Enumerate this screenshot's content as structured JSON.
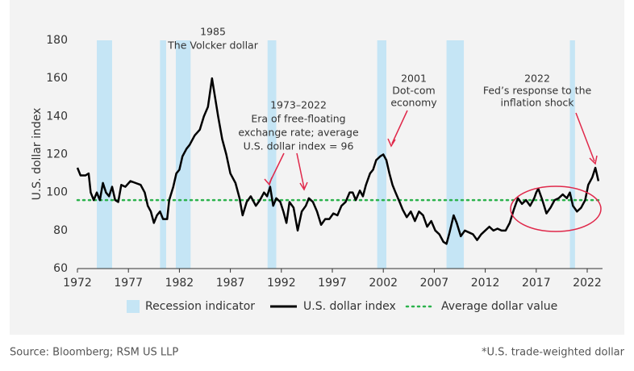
{
  "chart_data": {
    "type": "line",
    "y_label": "U.S. dollar index",
    "x": [
      1972.0,
      1972.3,
      1972.8,
      1973.1,
      1973.3,
      1973.6,
      1973.9,
      1974.2,
      1974.5,
      1974.8,
      1975.1,
      1975.4,
      1975.7,
      1976.0,
      1976.3,
      1976.7,
      1977.2,
      1977.7,
      1978.2,
      1978.6,
      1978.9,
      1979.2,
      1979.5,
      1979.8,
      1980.1,
      1980.4,
      1980.8,
      1981.0,
      1981.4,
      1981.7,
      1982.0,
      1982.3,
      1982.7,
      1983.0,
      1983.5,
      1984.0,
      1984.4,
      1984.8,
      1985.2,
      1985.5,
      1985.8,
      1986.2,
      1986.6,
      1987.0,
      1987.5,
      1987.9,
      1988.2,
      1988.6,
      1989.0,
      1989.5,
      1989.9,
      1990.3,
      1990.6,
      1990.9,
      1991.2,
      1991.5,
      1991.9,
      1992.2,
      1992.5,
      1992.8,
      1993.2,
      1993.6,
      1994.0,
      1994.4,
      1994.7,
      1995.1,
      1995.5,
      1995.9,
      1996.3,
      1996.7,
      1997.1,
      1997.5,
      1997.9,
      1998.3,
      1998.7,
      1999.0,
      1999.3,
      1999.7,
      2000.0,
      2000.3,
      2000.7,
      2001.0,
      2001.3,
      2001.7,
      2002.0,
      2002.3,
      2002.6,
      2002.9,
      2003.2,
      2003.6,
      2003.9,
      2004.3,
      2004.7,
      2005.1,
      2005.5,
      2005.9,
      2006.3,
      2006.7,
      2007.1,
      2007.5,
      2007.9,
      2008.2,
      2008.5,
      2008.9,
      2009.2,
      2009.6,
      2010.0,
      2010.4,
      2010.8,
      2011.2,
      2011.6,
      2012.0,
      2012.4,
      2012.8,
      2013.2,
      2013.6,
      2014.0,
      2014.4,
      2014.8,
      2015.2,
      2015.6,
      2016.0,
      2016.4,
      2016.8,
      2017.0,
      2017.2,
      2017.6,
      2018.0,
      2018.4,
      2018.8,
      2019.2,
      2019.6,
      2020.0,
      2020.3,
      2020.6,
      2021.0,
      2021.4,
      2021.8,
      2022.1,
      2022.5,
      2022.8,
      2023.1
    ],
    "series": [
      {
        "name": "U.S. dollar index",
        "color": "#000000",
        "values": [
          113,
          109,
          109,
          110,
          100,
          96,
          100,
          96,
          105,
          100,
          98,
          103,
          96,
          95,
          104,
          103,
          106,
          105,
          104,
          100,
          93,
          90,
          84,
          88,
          90,
          86,
          86,
          96,
          103,
          110,
          112,
          119,
          123,
          125,
          130,
          133,
          140,
          145,
          160,
          150,
          140,
          128,
          120,
          110,
          105,
          97,
          88,
          95,
          98,
          93,
          96,
          100,
          98,
          103,
          93,
          97,
          95,
          90,
          84,
          95,
          92,
          80,
          90,
          93,
          97,
          95,
          90,
          83,
          86,
          86,
          89,
          88,
          93,
          95,
          100,
          100,
          96,
          101,
          98,
          104,
          110,
          112,
          117,
          119,
          120,
          117,
          110,
          104,
          100,
          95,
          91,
          87,
          90,
          85,
          90,
          88,
          82,
          85,
          80,
          78,
          74,
          73,
          79,
          88,
          84,
          77,
          80,
          79,
          78,
          75,
          78,
          80,
          82,
          80,
          81,
          80,
          80,
          84,
          91,
          97,
          94,
          96,
          93,
          97,
          100,
          102,
          96,
          89,
          92,
          96,
          97,
          99,
          97,
          100,
          93,
          90,
          92,
          96,
          104,
          108,
          113,
          106
        ]
      }
    ],
    "recession": {
      "name": "Recession indicator",
      "color": "#c5e5f5",
      "periods": [
        [
          1973.9,
          1975.4
        ],
        [
          1980.1,
          1980.7
        ],
        [
          1981.65,
          1983.1
        ],
        [
          1990.65,
          1991.5
        ],
        [
          2001.4,
          2002.3
        ],
        [
          2008.2,
          2009.9
        ],
        [
          2020.3,
          2020.8
        ]
      ]
    },
    "average": {
      "name": "Average dollar value",
      "value": 96,
      "color": "#2bb24c"
    },
    "xlim": [
      1972,
      2023.5
    ],
    "ylim": [
      60,
      180
    ],
    "xticks": [
      1972,
      1977,
      1982,
      1987,
      1992,
      1997,
      2002,
      2007,
      2012,
      2017,
      2022
    ],
    "yticks": [
      60,
      80,
      100,
      120,
      140,
      160,
      180
    ],
    "grid": false,
    "annotations": [
      {
        "lines": [
          "1985",
          "The Volcker dollar"
        ]
      },
      {
        "lines": [
          "1973–2022",
          "Era of free-floating",
          "exchange rate; average",
          "U.S. dollar index = 96"
        ]
      },
      {
        "lines": [
          "2001",
          "Dot-com",
          "economy"
        ]
      },
      {
        "lines": [
          "2022",
          "Fed’s response to the",
          "inflation shock"
        ]
      }
    ],
    "source": "Source: Bloomberg; RSM US LLP",
    "footnote": "*U.S. trade-weighted dollar"
  }
}
